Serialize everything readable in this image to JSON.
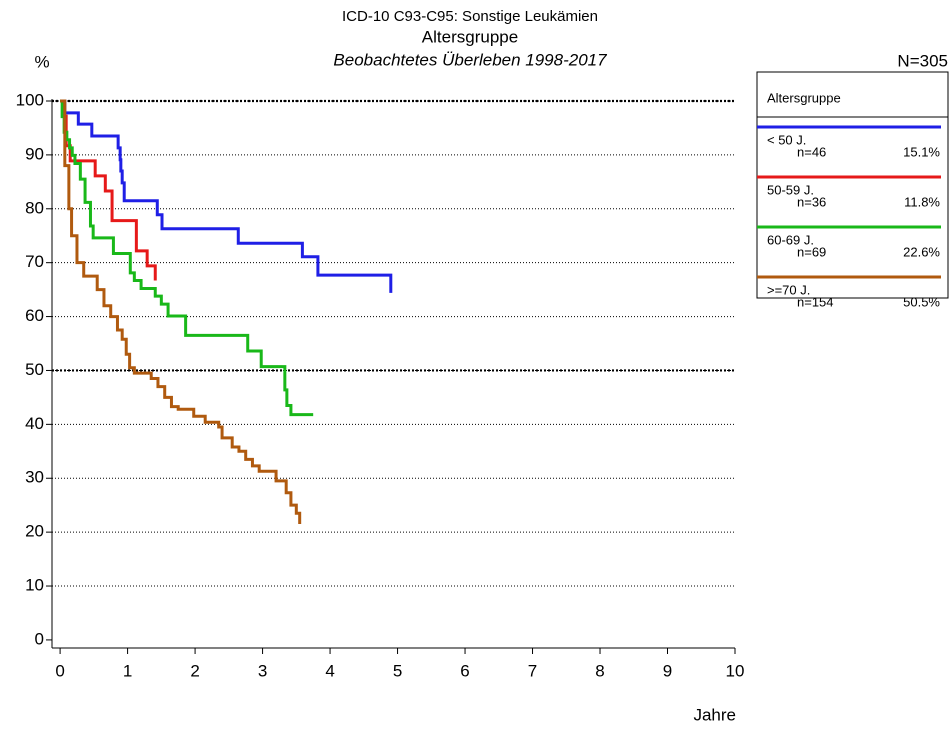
{
  "chart_data": {
    "type": "step",
    "title": "ICD-10 C93-C95: Sonstige Leukämien",
    "subtitle": "Altersgruppe",
    "subtitle2": "Beobachtetes Überleben 1998-2017",
    "total_label": "N=305",
    "y_label": "%",
    "x_label": "Jahre",
    "legend_title": "Altersgruppe",
    "xlim": [
      -0.12,
      10
    ],
    "ylim": [
      -1.5,
      100
    ],
    "xticks": [
      0,
      1,
      2,
      3,
      4,
      5,
      6,
      7,
      8,
      9,
      10
    ],
    "yticks": [
      0,
      10,
      20,
      30,
      40,
      50,
      60,
      70,
      80,
      90,
      100
    ],
    "grid": true,
    "grid_emphasis": [
      50,
      100
    ],
    "series": [
      {
        "name": "< 50 J.",
        "n_label": "n=46",
        "percent_label": "15.1%",
        "color": "#1f1fe6",
        "x": [
          0,
          0.07,
          0.27,
          0.47,
          0.86,
          0.89,
          0.9,
          0.92,
          0.95,
          1.44,
          1.51,
          2.64,
          3.59,
          3.82,
          4.9
        ],
        "values": [
          100,
          97.8,
          95.7,
          93.5,
          91.3,
          89.1,
          87.0,
          84.8,
          81.5,
          78.9,
          76.3,
          73.6,
          71.1,
          67.7,
          64.4
        ]
      },
      {
        "name": "50-59 J.",
        "n_label": "n=36",
        "percent_label": "11.8%",
        "color": "#e61919",
        "x": [
          0,
          0.04,
          0.09,
          0.15,
          0.52,
          0.67,
          0.77,
          1.13,
          1.29,
          1.41
        ],
        "values": [
          100,
          97.2,
          91.7,
          88.9,
          86.1,
          83.3,
          77.8,
          72.2,
          69.4,
          66.7
        ]
      },
      {
        "name": "60-69 J.",
        "n_label": "n=69",
        "percent_label": "22.6%",
        "color": "#19b819",
        "x": [
          0,
          0.03,
          0.06,
          0.1,
          0.14,
          0.18,
          0.22,
          0.3,
          0.37,
          0.45,
          0.49,
          0.79,
          1.04,
          1.1,
          1.2,
          1.41,
          1.5,
          1.6,
          1.86,
          2.78,
          2.98,
          3.33,
          3.36,
          3.42,
          3.75
        ],
        "values": [
          100,
          97.1,
          94.2,
          92.8,
          91.3,
          89.9,
          88.4,
          85.5,
          81.2,
          76.8,
          74.6,
          71.7,
          68.1,
          66.7,
          65.2,
          63.8,
          62.3,
          60.1,
          56.5,
          53.6,
          50.7,
          46.4,
          43.5,
          41.8,
          41.8
        ]
      },
      {
        "name": ">=70 J.",
        "n_label": "n=154",
        "percent_label": "50.5%",
        "color": "#b05a0f",
        "x": [
          0,
          0.07,
          0.13,
          0.17,
          0.25,
          0.35,
          0.55,
          0.65,
          0.75,
          0.85,
          0.92,
          0.98,
          1.03,
          1.1,
          1.35,
          1.45,
          1.55,
          1.65,
          1.75,
          1.98,
          2.15,
          2.35,
          2.4,
          2.55,
          2.65,
          2.75,
          2.85,
          2.95,
          3.2,
          3.35,
          3.42,
          3.5,
          3.55
        ],
        "values": [
          100,
          88,
          80,
          75,
          70,
          67.5,
          65,
          62,
          60,
          57.5,
          55.8,
          53,
          50.5,
          49.5,
          48.5,
          47,
          45,
          43.3,
          42.8,
          41.5,
          40.4,
          39.5,
          37.5,
          35.8,
          35,
          33.5,
          32.3,
          31.3,
          29.5,
          27.3,
          25,
          23.5,
          21.5
        ]
      }
    ]
  }
}
